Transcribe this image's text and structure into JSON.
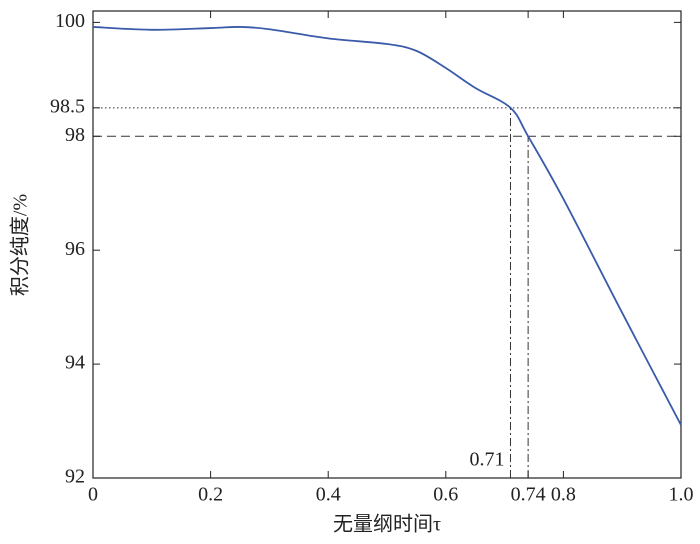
{
  "chart_data": {
    "type": "line",
    "x_label": "无量纲时间τ",
    "y_label": "积分纯度/%",
    "x": [
      0,
      0.1,
      0.2,
      0.25,
      0.3,
      0.4,
      0.5,
      0.55,
      0.6,
      0.65,
      0.71,
      0.74,
      0.8,
      0.9,
      1.0
    ],
    "series": [
      {
        "name": "purity",
        "color": "#3a5ba9",
        "values": [
          99.92,
          99.87,
          99.9,
          99.92,
          99.88,
          99.72,
          99.62,
          99.5,
          99.2,
          98.85,
          98.5,
          98.0,
          96.9,
          94.9,
          92.93
        ]
      }
    ],
    "xlim": [
      0,
      1
    ],
    "ylim": [
      92,
      100.2
    ],
    "xticks": [
      0,
      0.2,
      0.4,
      0.6,
      0.74,
      0.8,
      {
        "value": 1,
        "label": "1.0"
      }
    ],
    "yticks": [
      92,
      94,
      96,
      98,
      98.5,
      100
    ],
    "guides": [
      {
        "x": 0.71,
        "y": 98.5,
        "style": "dotted"
      },
      {
        "x": 0.74,
        "y": 98,
        "style": "dashed"
      }
    ]
  }
}
